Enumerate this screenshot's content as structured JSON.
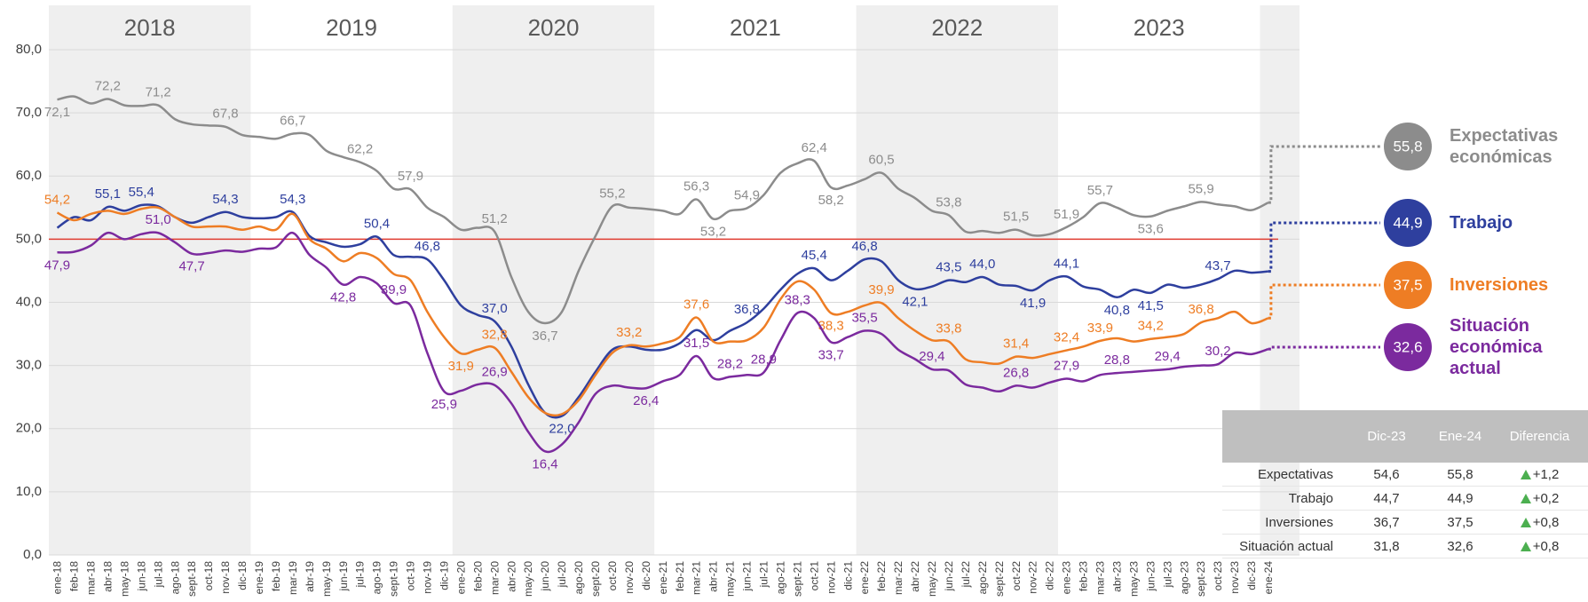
{
  "chart_data": {
    "type": "line",
    "years": [
      "2018",
      "2019",
      "2020",
      "2021",
      "2022",
      "2023"
    ],
    "categories": [
      "ene-18",
      "feb-18",
      "mar-18",
      "abr-18",
      "may-18",
      "jun-18",
      "jul-18",
      "ago-18",
      "sept-18",
      "oct-18",
      "nov-18",
      "dic-18",
      "ene-19",
      "feb-19",
      "mar-19",
      "abr-19",
      "may-19",
      "jun-19",
      "jul-19",
      "ago-19",
      "sept-19",
      "oct-19",
      "nov-19",
      "dic-19",
      "ene-20",
      "feb-20",
      "mar-20",
      "abr-20",
      "may-20",
      "jun-20",
      "jul-20",
      "ago-20",
      "sept-20",
      "oct-20",
      "nov-20",
      "dic-20",
      "ene-21",
      "feb-21",
      "mar-21",
      "abr-21",
      "may-21",
      "jun-21",
      "jul-21",
      "ago-21",
      "sept-21",
      "oct-21",
      "nov-21",
      "dic-21",
      "ene-22",
      "feb-22",
      "mar-22",
      "abr-22",
      "may-22",
      "jun-22",
      "jul-22",
      "ago-22",
      "sept-22",
      "oct-22",
      "nov-22",
      "dic-22",
      "ene-23",
      "feb-23",
      "mar-23",
      "abr-23",
      "may-23",
      "jun-23",
      "jul-23",
      "ago-23",
      "sept-23",
      "oct-23",
      "nov-23",
      "dic-23",
      "ene-24"
    ],
    "series": [
      {
        "name": "Expectativas económicas",
        "color": "#8c8c8c",
        "values": [
          72.1,
          72.6,
          71.5,
          72.2,
          71.2,
          71.1,
          71.2,
          69.0,
          68.2,
          68.0,
          67.8,
          66.5,
          66.2,
          65.9,
          66.7,
          66.5,
          64.0,
          63.0,
          62.2,
          60.8,
          58.0,
          57.9,
          55.0,
          53.5,
          51.5,
          51.8,
          51.2,
          44.0,
          38.5,
          36.7,
          38.5,
          45.0,
          50.5,
          55.2,
          55.0,
          54.8,
          54.5,
          54.0,
          56.3,
          53.2,
          54.5,
          54.9,
          57.0,
          60.5,
          62.0,
          62.4,
          58.2,
          58.5,
          59.5,
          60.5,
          58.0,
          56.5,
          54.5,
          53.8,
          51.2,
          51.3,
          51.0,
          51.5,
          50.6,
          50.8,
          51.9,
          53.5,
          55.7,
          55.0,
          53.8,
          53.6,
          54.5,
          55.2,
          55.9,
          55.5,
          55.2,
          54.6,
          55.8
        ],
        "value_labels": [
          "72,1",
          null,
          null,
          "72,2",
          null,
          null,
          "71,2",
          null,
          null,
          null,
          "67,8",
          null,
          null,
          null,
          "66,7",
          null,
          null,
          null,
          "62,2",
          null,
          null,
          "57,9",
          null,
          null,
          null,
          null,
          "51,2",
          null,
          null,
          "36,7",
          null,
          null,
          null,
          "55,2",
          null,
          null,
          null,
          null,
          "56,3",
          "53,2",
          null,
          "54,9",
          null,
          null,
          null,
          "62,4",
          "58,2",
          null,
          null,
          "60,5",
          null,
          null,
          null,
          "53,8",
          null,
          null,
          null,
          "51,5",
          null,
          null,
          "51,9",
          null,
          "55,7",
          null,
          null,
          "53,6",
          null,
          null,
          "55,9",
          null,
          null,
          null,
          "55,8"
        ]
      },
      {
        "name": "Trabajo",
        "color": "#2e3f9e",
        "values": [
          51.8,
          53.5,
          53.0,
          55.1,
          54.5,
          55.4,
          55.2,
          53.5,
          52.6,
          53.5,
          54.3,
          53.5,
          53.3,
          53.5,
          54.3,
          50.5,
          49.5,
          48.8,
          49.2,
          50.4,
          47.5,
          47.2,
          46.8,
          43.5,
          39.5,
          38.0,
          37.0,
          33.0,
          27.0,
          22.5,
          22.0,
          25.0,
          29.0,
          32.5,
          33.0,
          32.5,
          32.5,
          33.5,
          35.6,
          34.0,
          35.5,
          36.8,
          39.0,
          42.0,
          44.5,
          45.4,
          43.5,
          45.0,
          46.8,
          46.5,
          43.5,
          42.1,
          42.5,
          43.5,
          43.2,
          44.0,
          42.8,
          42.6,
          41.9,
          43.5,
          44.1,
          42.5,
          42.0,
          40.8,
          42.0,
          41.5,
          42.8,
          42.3,
          42.8,
          43.7,
          45.0,
          44.7,
          44.9
        ],
        "value_labels": [
          null,
          null,
          null,
          "55,1",
          null,
          "55,4",
          null,
          null,
          null,
          null,
          "54,3",
          null,
          null,
          null,
          "54,3",
          null,
          null,
          null,
          null,
          "50,4",
          null,
          null,
          "46,8",
          null,
          null,
          null,
          "37,0",
          null,
          null,
          null,
          "22,0",
          null,
          null,
          null,
          null,
          null,
          null,
          null,
          null,
          null,
          null,
          "36,8",
          null,
          null,
          null,
          "45,4",
          null,
          null,
          "46,8",
          null,
          null,
          "42,1",
          null,
          "43,5",
          null,
          "44,0",
          null,
          null,
          "41,9",
          null,
          "44,1",
          null,
          null,
          "40,8",
          null,
          "41,5",
          null,
          null,
          null,
          "43,7",
          null,
          null,
          "44,9"
        ]
      },
      {
        "name": "Inversiones",
        "color": "#ee7d24",
        "values": [
          54.2,
          53.0,
          54.0,
          54.5,
          54.0,
          54.8,
          55.0,
          53.5,
          52.0,
          52.0,
          52.0,
          51.5,
          52.0,
          51.5,
          54.0,
          50.0,
          48.5,
          46.5,
          47.8,
          47.0,
          44.5,
          43.5,
          38.5,
          34.5,
          31.9,
          32.5,
          32.8,
          29.0,
          25.0,
          22.5,
          22.3,
          24.5,
          28.5,
          32.0,
          33.2,
          33.0,
          33.5,
          34.5,
          37.6,
          33.8,
          33.8,
          34.0,
          36.0,
          40.5,
          43.3,
          42.0,
          38.3,
          38.5,
          39.5,
          39.9,
          37.5,
          35.5,
          34.0,
          33.8,
          31.0,
          30.5,
          30.3,
          31.4,
          31.2,
          31.8,
          32.4,
          33.0,
          33.9,
          34.3,
          33.8,
          34.2,
          34.5,
          35.0,
          36.8,
          37.5,
          38.5,
          36.7,
          37.5
        ],
        "value_labels": [
          "54,2",
          null,
          null,
          null,
          null,
          null,
          null,
          null,
          null,
          null,
          null,
          null,
          null,
          null,
          null,
          null,
          null,
          null,
          null,
          null,
          null,
          null,
          null,
          null,
          "31,9",
          null,
          "32,8",
          null,
          null,
          null,
          null,
          null,
          null,
          null,
          "33,2",
          null,
          null,
          null,
          "37,6",
          null,
          null,
          null,
          null,
          null,
          null,
          null,
          "38,3",
          null,
          null,
          "39,9",
          null,
          null,
          null,
          "33,8",
          null,
          null,
          null,
          "31,4",
          null,
          null,
          "32,4",
          null,
          "33,9",
          null,
          null,
          "34,2",
          null,
          null,
          "36,8",
          null,
          null,
          null,
          "37,5"
        ]
      },
      {
        "name": "Situación económica actual",
        "color": "#7b2a9e",
        "values": [
          47.9,
          48.0,
          49.0,
          51.0,
          50.0,
          50.8,
          51.0,
          49.5,
          47.7,
          47.8,
          48.2,
          48.0,
          48.5,
          48.7,
          51.0,
          47.5,
          45.5,
          42.8,
          44.0,
          43.0,
          39.9,
          39.5,
          32.0,
          25.9,
          26.0,
          27.0,
          26.9,
          24.0,
          19.5,
          16.4,
          17.5,
          21.0,
          25.5,
          26.8,
          26.5,
          26.4,
          27.5,
          28.5,
          31.5,
          28.0,
          28.2,
          28.5,
          28.9,
          34.0,
          38.3,
          37.5,
          33.7,
          34.5,
          35.5,
          35.0,
          32.5,
          31.0,
          29.4,
          29.2,
          27.0,
          26.5,
          25.9,
          26.8,
          26.5,
          27.3,
          27.9,
          27.5,
          28.5,
          28.8,
          29.0,
          29.2,
          29.4,
          29.8,
          30.0,
          30.2,
          32.0,
          31.8,
          32.6
        ],
        "value_labels": [
          "47,9",
          null,
          null,
          null,
          null,
          null,
          "51,0",
          null,
          "47,7",
          null,
          null,
          null,
          null,
          null,
          null,
          null,
          null,
          "42,8",
          null,
          null,
          "39,9",
          null,
          null,
          "25,9",
          null,
          null,
          "26,9",
          null,
          null,
          "16,4",
          null,
          null,
          null,
          null,
          null,
          "26,4",
          null,
          null,
          "31,5",
          null,
          "28,2",
          null,
          "28,9",
          null,
          "38,3",
          null,
          "33,7",
          null,
          "35,5",
          null,
          null,
          null,
          "29,4",
          null,
          null,
          null,
          null,
          "26,8",
          null,
          null,
          "27,9",
          null,
          null,
          "28,8",
          null,
          null,
          "29,4",
          null,
          null,
          "30,2",
          null,
          null,
          "32,6"
        ]
      }
    ],
    "ylim": [
      0,
      80
    ],
    "yticks": [
      {
        "value": 0,
        "label": "0,0"
      },
      {
        "value": 10,
        "label": "10,0"
      },
      {
        "value": 20,
        "label": "20,0"
      },
      {
        "value": 30,
        "label": "30,0"
      },
      {
        "value": 40,
        "label": "40,0"
      },
      {
        "value": 50,
        "label": "50,0"
      },
      {
        "value": 60,
        "label": "60,0"
      },
      {
        "value": 70,
        "label": "70,0"
      },
      {
        "value": 80,
        "label": "80,0"
      }
    ],
    "grid": true,
    "reference_line": {
      "value": 50,
      "color": "#e03c31"
    }
  },
  "table": {
    "header": [
      "Dic-23",
      "Ene-24",
      "Diferencia"
    ],
    "rows": [
      [
        "Expectativas",
        "54,6",
        "55,8",
        "+1,2"
      ],
      [
        "Trabajo",
        "44,7",
        "44,9",
        "+0,2"
      ],
      [
        "Inversiones",
        "36,7",
        "37,5",
        "+0,8"
      ],
      [
        "Situación actual",
        "31,8",
        "32,6",
        "+0,8"
      ]
    ]
  }
}
